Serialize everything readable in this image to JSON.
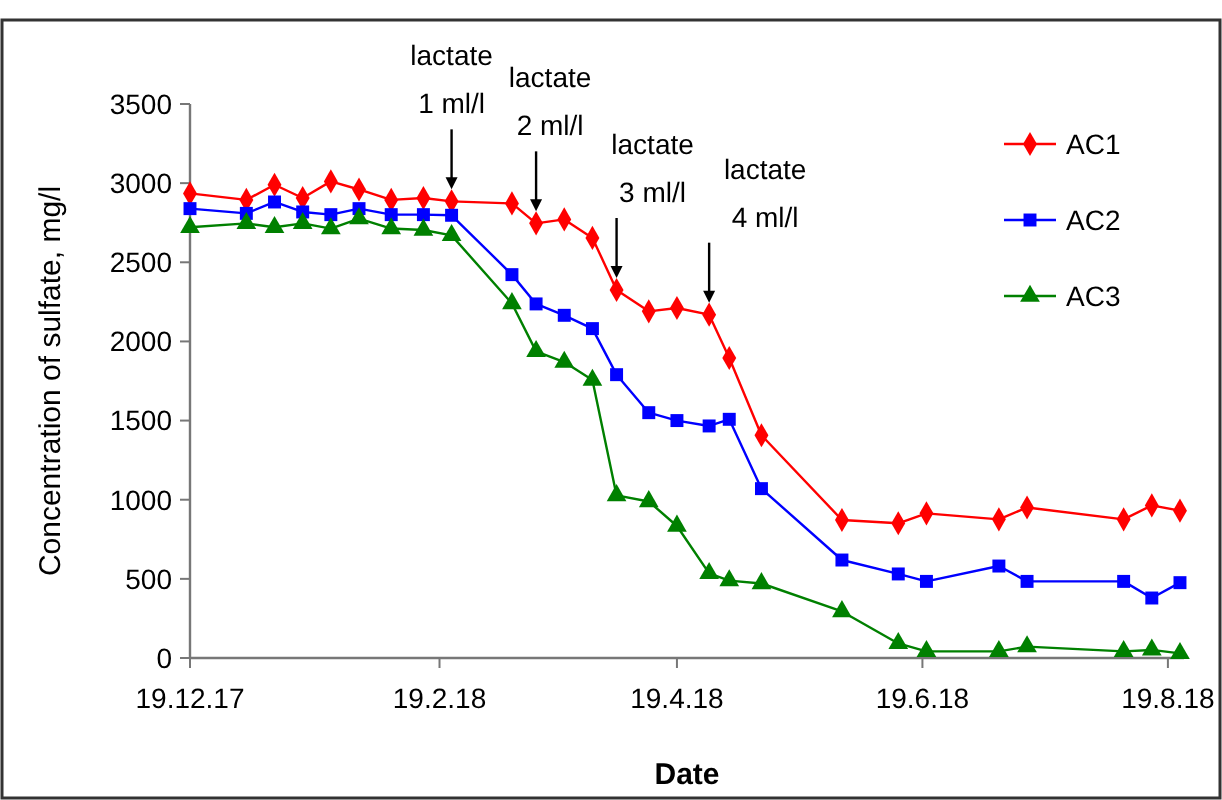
{
  "chart_data": {
    "type": "line",
    "xlabel": "Date",
    "ylabel": "Concentration of sulfate, mg/l",
    "x": [
      "2017-12-19",
      "2018-01-02",
      "2018-01-09",
      "2018-01-16",
      "2018-01-23",
      "2018-01-30",
      "2018-02-07",
      "2018-02-15",
      "2018-02-22",
      "2018-03-09",
      "2018-03-15",
      "2018-03-22",
      "2018-03-29",
      "2018-04-04",
      "2018-04-12",
      "2018-04-19",
      "2018-04-27",
      "2018-05-02",
      "2018-05-10",
      "2018-05-30",
      "2018-06-13",
      "2018-06-20",
      "2018-07-08",
      "2018-07-15",
      "2018-08-08",
      "2018-08-15",
      "2018-08-22"
    ],
    "series": [
      {
        "name": "AC1",
        "color": "#ff0000",
        "marker": "diamond",
        "values": [
          2935,
          2894,
          2990,
          2906,
          3011,
          2960,
          2894,
          2906,
          2885,
          2872,
          2746,
          2771,
          2654,
          2325,
          2190,
          2211,
          2169,
          1895,
          1407,
          872,
          851,
          914,
          876,
          951,
          876,
          964,
          931
        ]
      },
      {
        "name": "AC2",
        "color": "#0000ff",
        "marker": "square",
        "values": [
          2839,
          2809,
          2881,
          2818,
          2801,
          2839,
          2801,
          2801,
          2797,
          2422,
          2237,
          2165,
          2081,
          1790,
          1550,
          1500,
          1466,
          1508,
          1070,
          619,
          531,
          484,
          581,
          484,
          484,
          379,
          476
        ]
      },
      {
        "name": "AC3",
        "color": "#008000",
        "marker": "triangle",
        "values": [
          2721,
          2746,
          2721,
          2746,
          2713,
          2776,
          2713,
          2704,
          2670,
          2240,
          1937,
          1870,
          1756,
          1027,
          989,
          834,
          535,
          489,
          471,
          294,
          92,
          42,
          42,
          72,
          42,
          51,
          29
        ]
      }
    ],
    "xlim": [
      "2017-12-19",
      "2018-08-23"
    ],
    "xticks": [
      {
        "value": "2017-12-19",
        "label": "19.12.17"
      },
      {
        "value": "2018-02-19",
        "label": "19.2.18"
      },
      {
        "value": "2018-04-19",
        "label": "19.4.18"
      },
      {
        "value": "2018-06-19",
        "label": "19.6.18"
      },
      {
        "value": "2018-08-19",
        "label": "19.8.18"
      }
    ],
    "ylim": [
      0,
      3500
    ],
    "yticks": [
      0,
      500,
      1000,
      1500,
      2000,
      2500,
      3000,
      3500
    ],
    "grid": false,
    "legend": "top right",
    "line_style": "solid",
    "annotations": [
      {
        "text": "lactate\n1 ml/l",
        "x": "2018-02-22",
        "y": 2885
      },
      {
        "text": "lactate\n2 ml/l",
        "x": "2018-03-15",
        "y": 2746
      },
      {
        "text": "lactate\n3 ml/l",
        "x": "2018-04-04",
        "y": 2325
      },
      {
        "text": "lactate\n4 ml/l",
        "x": "2018-04-27",
        "y": 2169
      }
    ]
  }
}
